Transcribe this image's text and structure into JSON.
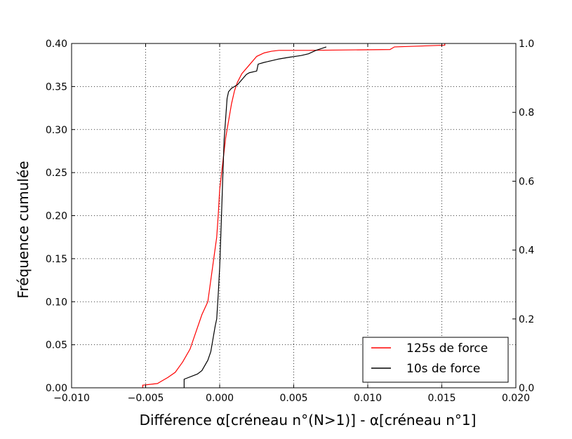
{
  "chart_data": {
    "type": "line",
    "xlabel": "Différence α[créneau n°(N>1)] - α[créneau n°1]",
    "ylabel": "Fréquence cumulée",
    "xlim": [
      -0.01,
      0.02
    ],
    "ylim_left": [
      0.0,
      0.4
    ],
    "ylim_right": [
      0.0,
      1.0
    ],
    "x_ticks": [
      "−0.010",
      "−0.005",
      "0.000",
      "0.005",
      "0.010",
      "0.015",
      "0.020"
    ],
    "x_tick_values": [
      -0.01,
      -0.005,
      0.0,
      0.005,
      0.01,
      0.015,
      0.02
    ],
    "y_ticks_left": [
      "0.00",
      "0.05",
      "0.10",
      "0.15",
      "0.20",
      "0.25",
      "0.30",
      "0.35",
      "0.40"
    ],
    "y_tick_values_left": [
      0.0,
      0.05,
      0.1,
      0.15,
      0.2,
      0.25,
      0.3,
      0.35,
      0.4
    ],
    "y_ticks_right": [
      "0.0",
      "0.2",
      "0.4",
      "0.6",
      "0.8",
      "1.0"
    ],
    "y_tick_values_right": [
      0.0,
      0.2,
      0.4,
      0.6,
      0.8,
      1.0
    ],
    "grid": true,
    "legend_position": "lower-right",
    "series": [
      {
        "name": "125s de force",
        "color": "#ff0000",
        "axis": "left",
        "x": [
          -0.0052,
          -0.0052,
          -0.0042,
          -0.004,
          -0.0035,
          -0.003,
          -0.0025,
          -0.002,
          -0.0016,
          -0.0012,
          -0.0008,
          -0.0006,
          -0.0004,
          -0.0002,
          -0.0001,
          0.0,
          0.0002,
          0.0004,
          0.0006,
          0.0008,
          0.001,
          0.0012,
          0.0015,
          0.002,
          0.0025,
          0.003,
          0.0035,
          0.004,
          0.006,
          0.0115,
          0.0118,
          0.0152,
          0.0152
        ],
        "y": [
          0.0,
          0.003,
          0.005,
          0.007,
          0.012,
          0.018,
          0.03,
          0.045,
          0.065,
          0.085,
          0.1,
          0.125,
          0.15,
          0.175,
          0.2,
          0.23,
          0.26,
          0.29,
          0.31,
          0.33,
          0.345,
          0.355,
          0.365,
          0.375,
          0.385,
          0.389,
          0.391,
          0.392,
          0.392,
          0.393,
          0.396,
          0.398,
          0.4
        ]
      },
      {
        "name": "10s de force",
        "color": "#000000",
        "axis": "right",
        "x": [
          -0.0024,
          -0.0024,
          -0.0015,
          -0.0012,
          -0.0008,
          -0.0006,
          -0.0005,
          -0.0004,
          -0.0003,
          -0.0002,
          -0.0001,
          0.0,
          0.0001,
          0.0002,
          0.0003,
          0.0004,
          0.0005,
          0.0006,
          0.0008,
          0.0012,
          0.0016,
          0.0018,
          0.002,
          0.0025,
          0.0026,
          0.003,
          0.0035,
          0.004,
          0.0047,
          0.0055,
          0.006,
          0.0065,
          0.0072
        ],
        "y": [
          0.0,
          0.025,
          0.04,
          0.05,
          0.08,
          0.105,
          0.13,
          0.155,
          0.18,
          0.2,
          0.27,
          0.35,
          0.47,
          0.6,
          0.72,
          0.78,
          0.84,
          0.86,
          0.87,
          0.88,
          0.9,
          0.91,
          0.915,
          0.92,
          0.94,
          0.945,
          0.95,
          0.955,
          0.96,
          0.965,
          0.97,
          0.98,
          0.99
        ]
      }
    ]
  }
}
